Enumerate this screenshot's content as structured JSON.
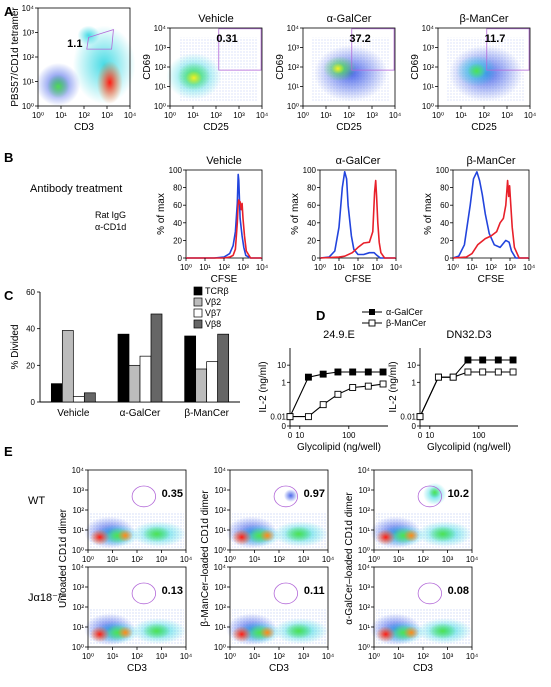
{
  "panel_letters": [
    "A",
    "B",
    "C",
    "D",
    "E"
  ],
  "colors": {
    "rat_igg": "#2244dd",
    "cd1d": "#e8202a",
    "gate": "#b268d8",
    "tcrb": "#000000",
    "vb2": "#bcbcbc",
    "vb7": "#ffffff",
    "vb8": "#666666"
  },
  "chart_data": [
    {
      "id": "A",
      "type": "scatter",
      "plots": [
        {
          "title": "",
          "xlabel": "CD3",
          "ylabel": "PBS57/CD1d tetramer",
          "gate_value": "1.1",
          "xlim": [
            1,
            10000
          ],
          "ylim": [
            1,
            10000
          ],
          "log": true
        },
        {
          "title": "Vehicle",
          "xlabel": "CD25",
          "ylabel": "CD69",
          "gate_value": "0.31",
          "xlim": [
            1,
            10000
          ],
          "ylim": [
            1,
            10000
          ],
          "log": true
        },
        {
          "title": "α-GalCer",
          "xlabel": "CD25",
          "ylabel": "CD69",
          "gate_value": "37.2",
          "xlim": [
            1,
            10000
          ],
          "ylim": [
            1,
            10000
          ],
          "log": true
        },
        {
          "title": "β-ManCer",
          "xlabel": "CD25",
          "ylabel": "CD69",
          "gate_value": "11.7",
          "xlim": [
            1,
            10000
          ],
          "ylim": [
            1,
            10000
          ],
          "log": true
        }
      ],
      "tick_labels": [
        "10⁰",
        "10¹",
        "10²",
        "10³",
        "10⁴"
      ]
    },
    {
      "id": "B",
      "type": "line",
      "row_label": "Antibody treatment",
      "legend": [
        "Rat IgG",
        "α-CD1d"
      ],
      "xlabel": "CFSE",
      "ylabel": "% of max",
      "xlim": [
        1,
        10000
      ],
      "ylim": [
        0,
        100
      ],
      "yticks": [
        0,
        20,
        40,
        60,
        80,
        100
      ],
      "tick_labels": [
        "10⁰",
        "10¹",
        "10²",
        "10³",
        "10⁴"
      ],
      "plots": [
        {
          "title": "Vehicle",
          "series": [
            {
              "name": "Rat IgG",
              "x": [
                1,
                30,
                100,
                200,
                300,
                400,
                500,
                560,
                600,
                700,
                900,
                1100,
                1400,
                2500,
                10000
              ],
              "y": [
                0,
                0,
                1,
                5,
                14,
                30,
                62,
                95,
                88,
                45,
                25,
                12,
                3,
                0,
                0
              ]
            },
            {
              "name": "α-CD1d",
              "x": [
                1,
                100,
                200,
                300,
                400,
                500,
                550,
                600,
                650,
                700,
                800,
                900,
                1000,
                1200,
                1500,
                2500,
                10000
              ],
              "y": [
                0,
                0,
                1,
                3,
                10,
                40,
                60,
                66,
                62,
                64,
                55,
                62,
                45,
                25,
                8,
                0,
                0
              ]
            }
          ]
        },
        {
          "title": "α-GalCer",
          "series": [
            {
              "name": "Rat IgG",
              "x": [
                1,
                3,
                6,
                10,
                15,
                20,
                25,
                30,
                45,
                60,
                100,
                200,
                400,
                700,
                1000,
                1500,
                10000
              ],
              "y": [
                0,
                1,
                8,
                35,
                80,
                98,
                90,
                60,
                25,
                10,
                4,
                4,
                6,
                6,
                3,
                0,
                0
              ]
            },
            {
              "name": "α-CD1d",
              "x": [
                1,
                10,
                20,
                50,
                100,
                200,
                400,
                600,
                750,
                850,
                950,
                1100,
                1300,
                1600,
                2500,
                10000
              ],
              "y": [
                0,
                1,
                2,
                6,
                12,
                17,
                18,
                30,
                75,
                88,
                70,
                40,
                18,
                6,
                0,
                0
              ]
            }
          ]
        },
        {
          "title": "β-ManCer",
          "series": [
            {
              "name": "Rat IgG",
              "x": [
                1,
                2,
                4,
                8,
                12,
                18,
                25,
                35,
                50,
                80,
                150,
                300,
                600,
                900,
                1200,
                2000,
                10000
              ],
              "y": [
                0,
                2,
                15,
                60,
                90,
                98,
                88,
                72,
                50,
                28,
                15,
                12,
                20,
                18,
                8,
                0,
                0
              ]
            },
            {
              "name": "α-CD1d",
              "x": [
                1,
                5,
                10,
                20,
                50,
                100,
                200,
                300,
                450,
                600,
                750,
                850,
                950,
                1100,
                1300,
                1700,
                3000,
                10000
              ],
              "y": [
                0,
                1,
                5,
                15,
                22,
                25,
                30,
                40,
                45,
                60,
                88,
                70,
                82,
                60,
                35,
                12,
                0,
                0
              ]
            }
          ]
        }
      ]
    },
    {
      "id": "C",
      "type": "bar",
      "categories": [
        "Vehicle",
        "α-GalCer",
        "β-ManCer"
      ],
      "ylabel": "% Divided",
      "ylim": [
        0,
        60
      ],
      "yticks": [
        0,
        20,
        40,
        60
      ],
      "series": [
        {
          "name": "TCRβ",
          "values": [
            10,
            37,
            36
          ]
        },
        {
          "name": "Vβ2",
          "values": [
            39,
            20,
            18
          ]
        },
        {
          "name": "Vβ7",
          "values": [
            3,
            25,
            22
          ]
        },
        {
          "name": "Vβ8",
          "values": [
            5,
            48,
            37
          ]
        }
      ]
    },
    {
      "id": "D",
      "type": "line",
      "legend": [
        "α-GalCer",
        "β-ManCer"
      ],
      "xlabel": "Glycolipid (ng/well)",
      "ylabel": "IL-2 (ng/ml)",
      "yticks": [
        "0",
        "0.01",
        "1",
        "10"
      ],
      "xticks": [
        "0",
        "10",
        "100"
      ],
      "plots": [
        {
          "title": "24.9.E",
          "series": [
            {
              "name": "α-GalCer",
              "x": [
                0,
                15,
                30,
                60,
                120,
                250,
                500
              ],
              "y": [
                0.01,
                2,
                3,
                4,
                4,
                4,
                4
              ]
            },
            {
              "name": "β-ManCer",
              "x": [
                0,
                15,
                30,
                60,
                120,
                250,
                500
              ],
              "y": [
                0.01,
                0.01,
                0.05,
                0.2,
                0.5,
                0.6,
                0.8
              ]
            }
          ]
        },
        {
          "title": "DN32.D3",
          "series": [
            {
              "name": "α-GalCer",
              "x": [
                0,
                15,
                30,
                60,
                120,
                250,
                500
              ],
              "y": [
                0.01,
                2,
                2,
                20,
                20,
                20,
                20
              ]
            },
            {
              "name": "β-ManCer",
              "x": [
                0,
                15,
                30,
                60,
                120,
                250,
                500
              ],
              "y": [
                0.01,
                2,
                2,
                4,
                4,
                4,
                4
              ]
            }
          ]
        }
      ]
    },
    {
      "id": "E",
      "type": "scatter",
      "row_labels": [
        "WT",
        "Jα18⁻/⁻"
      ],
      "xlabel": "CD3",
      "col_ylabels": [
        "Unloaded CD1d dimer",
        "β-ManCer–loaded CD1d dimer",
        "α-GalCer–loaded CD1d dimer"
      ],
      "tick_labels": [
        "10⁰",
        "10¹",
        "10²",
        "10³",
        "10⁴"
      ],
      "xlim": [
        1,
        10000
      ],
      "ylim": [
        1,
        10000
      ],
      "log": true,
      "gate_values": [
        [
          "0.35",
          "0.97",
          "10.2"
        ],
        [
          "0.13",
          "0.11",
          "0.08"
        ]
      ]
    }
  ]
}
